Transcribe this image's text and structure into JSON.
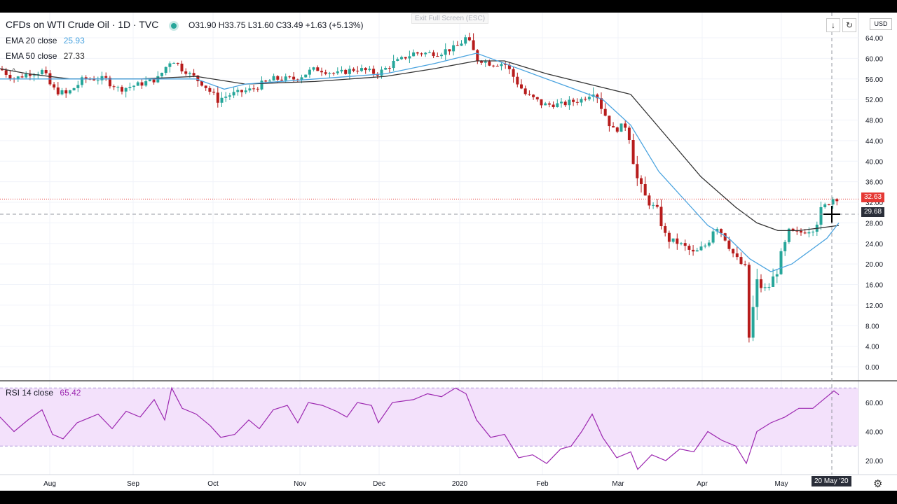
{
  "header": {
    "title": "CFDs on WTI Crude Oil · 1D · TVC",
    "ohlc": "O31.90 H33.75 L31.60 C33.49 +1.63 (+5.13%)",
    "ema20_label": "EMA 20 close",
    "ema20_value": "25.93",
    "ema50_label": "EMA 50 close",
    "ema50_value": "27.33",
    "exit_fullscreen": "Exit Full Screen (ESC)",
    "currency": "USD"
  },
  "rsi": {
    "label": "RSI 14 close",
    "value": "65.42",
    "ticks": [
      "60.00",
      "40.00",
      "20.00"
    ]
  },
  "badges": {
    "last_price": "32.63",
    "crosshair_price": "29.68",
    "crosshair_date": "20 May '20"
  },
  "colors": {
    "up": "#26a69a",
    "down": "#b71c1c",
    "ema20": "#4aa3df",
    "ema50": "#333333",
    "rsi": "#9c27b0",
    "rsi_band": "#f3e1fb"
  },
  "chart_data": {
    "type": "candlestick",
    "y_ticks": [
      64,
      60,
      56,
      52,
      48,
      44,
      40,
      36,
      32,
      28,
      24,
      20,
      16,
      12,
      8,
      4,
      0
    ],
    "ylim": [
      -1,
      66
    ],
    "x_labels": [
      "Aug",
      "Sep",
      "Oct",
      "Nov",
      "Dec",
      "2020",
      "Feb",
      "Mar",
      "Apr",
      "May"
    ],
    "price_path": [
      [
        0,
        58
      ],
      [
        20,
        56
      ],
      [
        40,
        57
      ],
      [
        60,
        57.5
      ],
      [
        75,
        54
      ],
      [
        95,
        53
      ],
      [
        120,
        56
      ],
      [
        150,
        56
      ],
      [
        170,
        54
      ],
      [
        200,
        55
      ],
      [
        225,
        56
      ],
      [
        245,
        60
      ],
      [
        260,
        58
      ],
      [
        290,
        55
      ],
      [
        310,
        52
      ],
      [
        330,
        53
      ],
      [
        360,
        54
      ],
      [
        390,
        56
      ],
      [
        420,
        56
      ],
      [
        450,
        58
      ],
      [
        480,
        57
      ],
      [
        510,
        58
      ],
      [
        540,
        57
      ],
      [
        560,
        59
      ],
      [
        590,
        61
      ],
      [
        620,
        61
      ],
      [
        650,
        62
      ],
      [
        665,
        64
      ],
      [
        680,
        60
      ],
      [
        700,
        59
      ],
      [
        720,
        59
      ],
      [
        735,
        56
      ],
      [
        750,
        53
      ],
      [
        775,
        51
      ],
      [
        800,
        51
      ],
      [
        830,
        52
      ],
      [
        848,
        54
      ],
      [
        860,
        50
      ],
      [
        875,
        46
      ],
      [
        895,
        47
      ],
      [
        910,
        36
      ],
      [
        920,
        33
      ],
      [
        940,
        30
      ],
      [
        950,
        25
      ],
      [
        970,
        24
      ],
      [
        990,
        22
      ],
      [
        1010,
        24
      ],
      [
        1020,
        28
      ],
      [
        1035,
        25
      ],
      [
        1050,
        21
      ],
      [
        1065,
        19
      ],
      [
        1068,
        5
      ],
      [
        1080,
        16
      ],
      [
        1095,
        15
      ],
      [
        1110,
        19
      ],
      [
        1125,
        26
      ],
      [
        1140,
        26
      ],
      [
        1160,
        27
      ],
      [
        1175,
        31
      ],
      [
        1190,
        33
      ],
      [
        1197,
        32.6
      ]
    ],
    "ema20": [
      [
        0,
        56
      ],
      [
        100,
        56
      ],
      [
        200,
        56
      ],
      [
        280,
        56
      ],
      [
        320,
        54
      ],
      [
        350,
        55
      ],
      [
        450,
        56
      ],
      [
        550,
        57
      ],
      [
        620,
        59
      ],
      [
        680,
        61
      ],
      [
        720,
        59
      ],
      [
        760,
        57
      ],
      [
        820,
        54
      ],
      [
        860,
        52
      ],
      [
        900,
        47
      ],
      [
        940,
        38
      ],
      [
        980,
        32
      ],
      [
        1010,
        27.5
      ],
      [
        1040,
        25
      ],
      [
        1070,
        21
      ],
      [
        1100,
        18.5
      ],
      [
        1130,
        20
      ],
      [
        1160,
        23
      ],
      [
        1180,
        25
      ],
      [
        1197,
        28
      ]
    ],
    "ema50": [
      [
        0,
        58
      ],
      [
        40,
        57
      ],
      [
        100,
        56
      ],
      [
        200,
        56
      ],
      [
        280,
        56.5
      ],
      [
        350,
        55
      ],
      [
        450,
        55.5
      ],
      [
        550,
        56.5
      ],
      [
        620,
        58
      ],
      [
        680,
        59.5
      ],
      [
        720,
        59.5
      ],
      [
        780,
        57
      ],
      [
        840,
        55
      ],
      [
        900,
        53
      ],
      [
        950,
        45
      ],
      [
        1000,
        37
      ],
      [
        1050,
        31
      ],
      [
        1080,
        28
      ],
      [
        1110,
        26.5
      ],
      [
        1140,
        26.5
      ],
      [
        1170,
        27
      ],
      [
        1197,
        27.5
      ]
    ],
    "last_price_line": 32.63,
    "crosshair_price_line": 29.68,
    "rsi_band": [
      30,
      70
    ],
    "rsi_path": [
      [
        0,
        50
      ],
      [
        20,
        40
      ],
      [
        40,
        48
      ],
      [
        60,
        55
      ],
      [
        75,
        38
      ],
      [
        90,
        35
      ],
      [
        110,
        46
      ],
      [
        140,
        52
      ],
      [
        160,
        42
      ],
      [
        180,
        54
      ],
      [
        200,
        50
      ],
      [
        220,
        62
      ],
      [
        235,
        48
      ],
      [
        245,
        70
      ],
      [
        260,
        56
      ],
      [
        280,
        52
      ],
      [
        300,
        44
      ],
      [
        315,
        36
      ],
      [
        335,
        38
      ],
      [
        355,
        48
      ],
      [
        370,
        42
      ],
      [
        390,
        55
      ],
      [
        410,
        58
      ],
      [
        425,
        46
      ],
      [
        440,
        60
      ],
      [
        460,
        58
      ],
      [
        480,
        54
      ],
      [
        495,
        50
      ],
      [
        510,
        60
      ],
      [
        530,
        58
      ],
      [
        540,
        46
      ],
      [
        560,
        60
      ],
      [
        590,
        62
      ],
      [
        610,
        66
      ],
      [
        630,
        64
      ],
      [
        650,
        70
      ],
      [
        665,
        66
      ],
      [
        680,
        48
      ],
      [
        700,
        36
      ],
      [
        720,
        38
      ],
      [
        740,
        22
      ],
      [
        760,
        24
      ],
      [
        780,
        18
      ],
      [
        800,
        28
      ],
      [
        815,
        30
      ],
      [
        830,
        40
      ],
      [
        845,
        52
      ],
      [
        860,
        36
      ],
      [
        880,
        22
      ],
      [
        900,
        26
      ],
      [
        910,
        14
      ],
      [
        930,
        24
      ],
      [
        950,
        20
      ],
      [
        970,
        28
      ],
      [
        990,
        26
      ],
      [
        1010,
        40
      ],
      [
        1030,
        34
      ],
      [
        1050,
        30
      ],
      [
        1065,
        18
      ],
      [
        1080,
        40
      ],
      [
        1100,
        46
      ],
      [
        1120,
        50
      ],
      [
        1140,
        56
      ],
      [
        1160,
        56
      ],
      [
        1180,
        64
      ],
      [
        1190,
        68
      ],
      [
        1197,
        65.4
      ]
    ]
  }
}
